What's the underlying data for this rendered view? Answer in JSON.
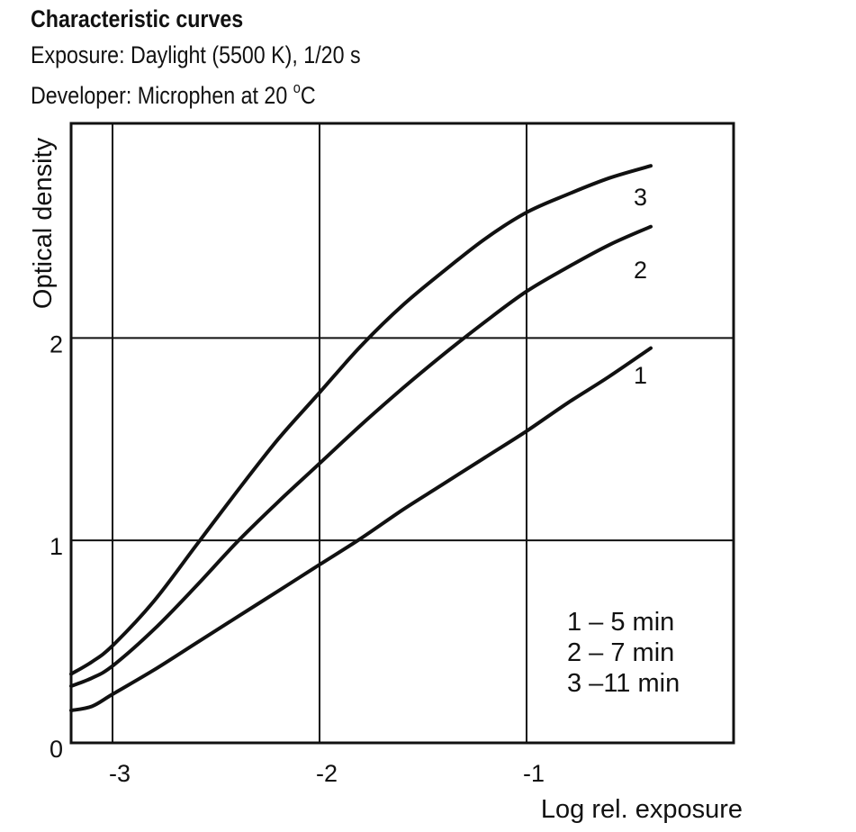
{
  "chart_data": {
    "type": "line",
    "title": "Characteristic curves",
    "subtitle_lines": [
      "Exposure: Daylight (5500 K), 1/20 s",
      "Developer:  Microphen at 20 ",
      "C"
    ],
    "subtitle_degree_mark": "o",
    "xlabel": "Log rel. exposure",
    "ylabel": "Optical density",
    "xlim": [
      -3.2,
      0.0
    ],
    "ylim": [
      0,
      3.06
    ],
    "x_ticks": [
      -3,
      -2,
      -1
    ],
    "x_tick_labels": [
      "-3",
      "-2",
      "-1"
    ],
    "y_ticks": [
      0,
      1,
      2
    ],
    "y_tick_labels": [
      "0",
      "1",
      "2"
    ],
    "grid": true,
    "legend_position": "bottom-right",
    "legend_entries": [
      "1 – 5 min",
      "2 – 7 min",
      "3 –11 min"
    ],
    "series": [
      {
        "name": "1",
        "x": [
          -3.2,
          -3.1,
          -3.0,
          -2.8,
          -2.6,
          -2.4,
          -2.2,
          -2.0,
          -1.8,
          -1.6,
          -1.4,
          -1.2,
          -1.0,
          -0.8,
          -0.6,
          -0.4
        ],
        "values": [
          0.16,
          0.18,
          0.24,
          0.36,
          0.49,
          0.62,
          0.75,
          0.88,
          1.01,
          1.15,
          1.28,
          1.41,
          1.54,
          1.68,
          1.81,
          1.95
        ]
      },
      {
        "name": "2",
        "x": [
          -3.2,
          -3.1,
          -3.0,
          -2.8,
          -2.6,
          -2.4,
          -2.2,
          -2.0,
          -1.8,
          -1.6,
          -1.4,
          -1.2,
          -1.0,
          -0.8,
          -0.6,
          -0.4
        ],
        "values": [
          0.28,
          0.32,
          0.38,
          0.56,
          0.77,
          0.99,
          1.19,
          1.38,
          1.57,
          1.75,
          1.92,
          2.08,
          2.23,
          2.35,
          2.46,
          2.55
        ]
      },
      {
        "name": "3",
        "x": [
          -3.2,
          -3.1,
          -3.0,
          -2.8,
          -2.6,
          -2.4,
          -2.2,
          -2.0,
          -1.8,
          -1.6,
          -1.4,
          -1.2,
          -1.0,
          -0.8,
          -0.6,
          -0.4
        ],
        "values": [
          0.34,
          0.4,
          0.48,
          0.7,
          0.97,
          1.24,
          1.5,
          1.73,
          1.96,
          2.16,
          2.33,
          2.49,
          2.62,
          2.71,
          2.79,
          2.85
        ]
      }
    ],
    "curve_labels": [
      {
        "text": "1",
        "series": "1",
        "x": -0.45,
        "y": 1.82
      },
      {
        "text": "2",
        "series": "2",
        "x": -0.45,
        "y": 2.34
      },
      {
        "text": "3",
        "series": "3",
        "x": -0.45,
        "y": 2.7
      }
    ]
  }
}
